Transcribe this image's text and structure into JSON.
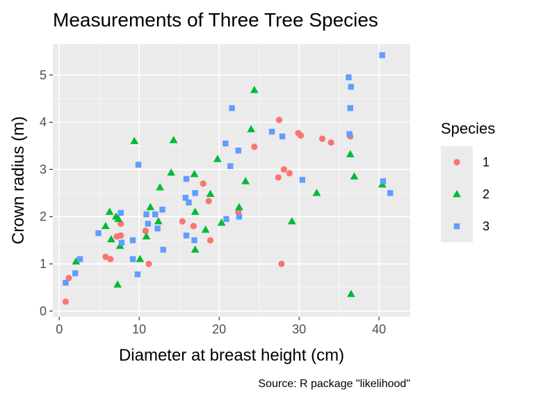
{
  "colors": {
    "panel": "#ebebeb",
    "grid_major": "#ffffff",
    "series_1": "#F8766D",
    "series_2": "#00BA38",
    "series_3": "#619CFF"
  },
  "chart_data": {
    "type": "scatter",
    "title": "Measurements of Three Tree Species",
    "xlabel": "Diameter at breast height (cm)",
    "ylabel": "Crown radius (m)",
    "caption": "Source: R package \"likelihood\"",
    "xlim": [
      -0.8,
      43.9
    ],
    "ylim": [
      -0.12,
      5.66
    ],
    "xticks": [
      0,
      10,
      20,
      30,
      40
    ],
    "yticks": [
      0,
      1,
      2,
      3,
      4,
      5
    ],
    "grid": true,
    "legend": {
      "title": "Species",
      "placement": "right",
      "entries": [
        "1",
        "2",
        "3"
      ]
    },
    "series": [
      {
        "name": "1",
        "shape": "circle",
        "points": [
          [
            0.8,
            0.2
          ],
          [
            1.2,
            0.7
          ],
          [
            5.8,
            1.15
          ],
          [
            6.4,
            1.1
          ],
          [
            7.2,
            1.58
          ],
          [
            7.7,
            1.6
          ],
          [
            7.7,
            1.85
          ],
          [
            10.8,
            1.7
          ],
          [
            11.2,
            1.0
          ],
          [
            15.4,
            1.9
          ],
          [
            16.8,
            1.8
          ],
          [
            18.0,
            2.7
          ],
          [
            18.7,
            2.33
          ],
          [
            18.9,
            1.5
          ],
          [
            22.4,
            2.1
          ],
          [
            24.4,
            3.48
          ],
          [
            27.4,
            2.83
          ],
          [
            27.5,
            4.05
          ],
          [
            27.8,
            1.0
          ],
          [
            28.1,
            3.0
          ],
          [
            28.8,
            2.92
          ],
          [
            29.9,
            3.77
          ],
          [
            30.2,
            3.72
          ],
          [
            32.9,
            3.65
          ],
          [
            34.0,
            3.57
          ],
          [
            36.4,
            3.7
          ]
        ]
      },
      {
        "name": "2",
        "shape": "triangle",
        "points": [
          [
            2.1,
            1.05
          ],
          [
            5.8,
            1.8
          ],
          [
            6.3,
            2.1
          ],
          [
            6.5,
            1.52
          ],
          [
            7.1,
            2.0
          ],
          [
            7.3,
            0.56
          ],
          [
            7.4,
            1.95
          ],
          [
            7.6,
            1.38
          ],
          [
            9.4,
            3.6
          ],
          [
            10.1,
            1.1
          ],
          [
            10.9,
            1.58
          ],
          [
            11.4,
            2.2
          ],
          [
            12.4,
            1.9
          ],
          [
            12.6,
            2.62
          ],
          [
            14.0,
            2.93
          ],
          [
            14.3,
            3.62
          ],
          [
            16.9,
            2.9
          ],
          [
            17.0,
            2.1
          ],
          [
            17.0,
            1.3
          ],
          [
            18.3,
            1.72
          ],
          [
            18.9,
            2.48
          ],
          [
            19.8,
            3.22
          ],
          [
            20.3,
            1.87
          ],
          [
            22.5,
            2.2
          ],
          [
            23.3,
            2.75
          ],
          [
            24.0,
            3.85
          ],
          [
            24.4,
            4.68
          ],
          [
            29.1,
            1.9
          ],
          [
            32.2,
            2.5
          ],
          [
            36.4,
            3.32
          ],
          [
            36.5,
            0.36
          ],
          [
            36.9,
            2.85
          ],
          [
            40.4,
            2.68
          ]
        ]
      },
      {
        "name": "3",
        "shape": "square",
        "points": [
          [
            0.8,
            0.6
          ],
          [
            2.0,
            0.8
          ],
          [
            2.6,
            1.1
          ],
          [
            4.9,
            1.65
          ],
          [
            7.7,
            2.08
          ],
          [
            7.8,
            1.45
          ],
          [
            9.2,
            1.1
          ],
          [
            9.2,
            1.5
          ],
          [
            9.8,
            0.78
          ],
          [
            9.9,
            3.1
          ],
          [
            10.9,
            2.05
          ],
          [
            11.1,
            1.85
          ],
          [
            12.0,
            2.05
          ],
          [
            12.3,
            1.75
          ],
          [
            12.9,
            2.15
          ],
          [
            13.0,
            1.3
          ],
          [
            15.8,
            2.4
          ],
          [
            15.9,
            1.6
          ],
          [
            15.9,
            2.8
          ],
          [
            16.2,
            2.3
          ],
          [
            16.9,
            1.5
          ],
          [
            17.0,
            2.5
          ],
          [
            20.8,
            3.55
          ],
          [
            20.9,
            1.95
          ],
          [
            21.4,
            3.07
          ],
          [
            21.6,
            4.3
          ],
          [
            22.4,
            3.4
          ],
          [
            22.5,
            2.0
          ],
          [
            26.6,
            3.8
          ],
          [
            27.9,
            3.7
          ],
          [
            30.4,
            2.78
          ],
          [
            36.2,
            4.95
          ],
          [
            36.3,
            3.75
          ],
          [
            36.4,
            4.3
          ],
          [
            36.5,
            4.75
          ],
          [
            40.4,
            5.42
          ],
          [
            40.5,
            2.75
          ],
          [
            41.4,
            2.5
          ]
        ]
      }
    ]
  }
}
